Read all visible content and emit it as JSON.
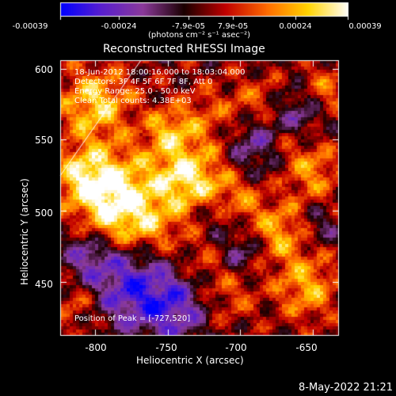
{
  "colorbar": {
    "tick_labels": [
      "-0.00039",
      "-0.00024",
      "-7.9e-05",
      "7.9e-05",
      "0.00024",
      "0.00039"
    ],
    "units_label": "(photons cm⁻² s⁻¹ asec⁻²)",
    "colors": [
      "#0000ff",
      "#5a1fcf",
      "#8b3a9a",
      "#1a0000",
      "#c00000",
      "#ff6a00",
      "#ffd400",
      "#ffffff"
    ]
  },
  "title": "Reconstructed RHESSI Image",
  "info_lines": [
    "18-Jun-2012 18:00:16.000 to 18:03:04.000",
    "Detectors: 3F 4F 5F 6F 7F 8F, Att 0",
    "Energy Range: 25.0 - 50.0 keV",
    "Clean    Total counts: 4.38E+03"
  ],
  "peak_label": "Position of Peak = [-727,520]",
  "x_axis": {
    "label": "Heliocentric X (arcsec)",
    "ticks": [
      "-800",
      "-750",
      "-700",
      "-650"
    ],
    "tick_values": [
      -800,
      -750,
      -700,
      -650
    ],
    "range": [
      -824,
      -632
    ]
  },
  "y_axis": {
    "label": "Heliocentric Y (arcsec)",
    "ticks": [
      "600",
      "550",
      "500",
      "450"
    ],
    "tick_values": [
      600,
      550,
      500,
      450
    ],
    "range": [
      412,
      606
    ]
  },
  "date": "8-May-2022 21:21"
}
